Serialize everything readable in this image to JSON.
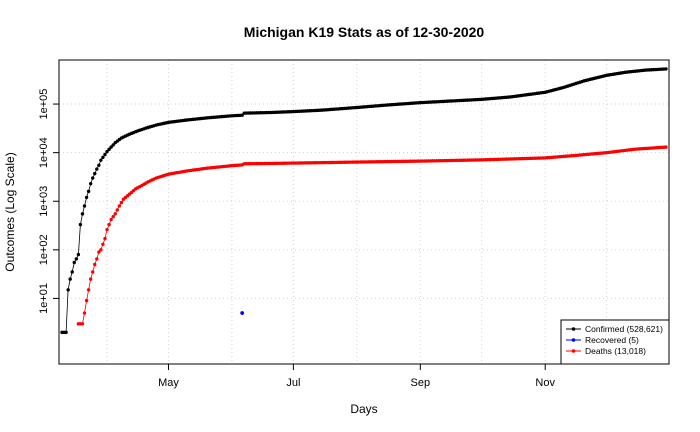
{
  "chart_data": {
    "type": "scatter",
    "title": "Michigan K19 Stats as of 12-30-2020",
    "xlabel": "Days",
    "ylabel": "Outcomes (Log Scale)",
    "y_scale": "log",
    "ylim": [
      1,
      700000
    ],
    "xlim": [
      "2020-03-10",
      "2020-12-30"
    ],
    "x_ticks": [
      {
        "date": "2020-05-01",
        "label": "May"
      },
      {
        "date": "2020-07-01",
        "label": "Jul"
      },
      {
        "date": "2020-09-01",
        "label": "Sep"
      },
      {
        "date": "2020-11-01",
        "label": "Nov"
      }
    ],
    "y_ticks": [
      {
        "value": 10,
        "label": "1e+01"
      },
      {
        "value": 100,
        "label": "1e+02"
      },
      {
        "value": 1000,
        "label": "1e+03"
      },
      {
        "value": 10000,
        "label": "1e+04"
      },
      {
        "value": 100000,
        "label": "1e+05"
      }
    ],
    "grid": true,
    "legend_position": "bottom-right",
    "series": [
      {
        "name": "Confirmed (528,621)",
        "color": "#000000",
        "points": [
          [
            "2020-03-10",
            2
          ],
          [
            "2020-03-12",
            2
          ],
          [
            "2020-03-13",
            15
          ],
          [
            "2020-03-14",
            25
          ],
          [
            "2020-03-15",
            35
          ],
          [
            "2020-03-16",
            55
          ],
          [
            "2020-03-17",
            65
          ],
          [
            "2020-03-18",
            80
          ],
          [
            "2020-03-19",
            330
          ],
          [
            "2020-03-20",
            550
          ],
          [
            "2020-03-21",
            800
          ],
          [
            "2020-03-22",
            1200
          ],
          [
            "2020-03-23",
            1600
          ],
          [
            "2020-03-24",
            2300
          ],
          [
            "2020-03-25",
            3000
          ],
          [
            "2020-03-26",
            3700
          ],
          [
            "2020-03-27",
            4600
          ],
          [
            "2020-03-28",
            5500
          ],
          [
            "2020-03-29",
            7000
          ],
          [
            "2020-03-30",
            8000
          ],
          [
            "2020-04-01",
            10500
          ],
          [
            "2020-04-03",
            13000
          ],
          [
            "2020-04-05",
            16000
          ],
          [
            "2020-04-08",
            20000
          ],
          [
            "2020-04-12",
            24000
          ],
          [
            "2020-04-16",
            28000
          ],
          [
            "2020-04-20",
            32000
          ],
          [
            "2020-04-25",
            37000
          ],
          [
            "2020-05-01",
            42000
          ],
          [
            "2020-05-10",
            47000
          ],
          [
            "2020-05-20",
            52000
          ],
          [
            "2020-05-31",
            57000
          ],
          [
            "2020-06-06",
            59000
          ],
          [
            "2020-06-07",
            65000
          ],
          [
            "2020-06-20",
            67000
          ],
          [
            "2020-07-01",
            70000
          ],
          [
            "2020-07-15",
            75000
          ],
          [
            "2020-08-01",
            85000
          ],
          [
            "2020-08-15",
            95000
          ],
          [
            "2020-09-01",
            107000
          ],
          [
            "2020-09-15",
            115000
          ],
          [
            "2020-10-01",
            125000
          ],
          [
            "2020-10-15",
            140000
          ],
          [
            "2020-11-01",
            175000
          ],
          [
            "2020-11-10",
            220000
          ],
          [
            "2020-11-20",
            300000
          ],
          [
            "2020-12-01",
            390000
          ],
          [
            "2020-12-10",
            450000
          ],
          [
            "2020-12-20",
            500000
          ],
          [
            "2020-12-30",
            528621
          ]
        ]
      },
      {
        "name": "Recovered (5)",
        "color": "#0000ff",
        "points": [
          [
            "2020-06-06",
            5
          ]
        ]
      },
      {
        "name": "Deaths (13,018)",
        "color": "#ff0000",
        "points": [
          [
            "2020-03-18",
            3
          ],
          [
            "2020-03-20",
            3
          ],
          [
            "2020-03-21",
            5
          ],
          [
            "2020-03-22",
            9
          ],
          [
            "2020-03-23",
            15
          ],
          [
            "2020-03-24",
            25
          ],
          [
            "2020-03-25",
            35
          ],
          [
            "2020-03-26",
            50
          ],
          [
            "2020-03-27",
            65
          ],
          [
            "2020-03-28",
            90
          ],
          [
            "2020-03-29",
            100
          ],
          [
            "2020-03-30",
            130
          ],
          [
            "2020-03-31",
            170
          ],
          [
            "2020-04-01",
            260
          ],
          [
            "2020-04-02",
            330
          ],
          [
            "2020-04-03",
            420
          ],
          [
            "2020-04-05",
            550
          ],
          [
            "2020-04-07",
            800
          ],
          [
            "2020-04-09",
            1100
          ],
          [
            "2020-04-12",
            1400
          ],
          [
            "2020-04-15",
            1800
          ],
          [
            "2020-04-18",
            2100
          ],
          [
            "2020-04-21",
            2500
          ],
          [
            "2020-04-25",
            3000
          ],
          [
            "2020-05-01",
            3600
          ],
          [
            "2020-05-10",
            4200
          ],
          [
            "2020-05-20",
            4800
          ],
          [
            "2020-06-01",
            5400
          ],
          [
            "2020-06-06",
            5600
          ],
          [
            "2020-06-07",
            5900
          ],
          [
            "2020-06-20",
            6000
          ],
          [
            "2020-07-01",
            6100
          ],
          [
            "2020-08-01",
            6400
          ],
          [
            "2020-09-01",
            6700
          ],
          [
            "2020-10-01",
            7100
          ],
          [
            "2020-11-01",
            7800
          ],
          [
            "2020-11-15",
            8700
          ],
          [
            "2020-12-01",
            10000
          ],
          [
            "2020-12-15",
            11800
          ],
          [
            "2020-12-30",
            13018
          ]
        ]
      }
    ]
  }
}
